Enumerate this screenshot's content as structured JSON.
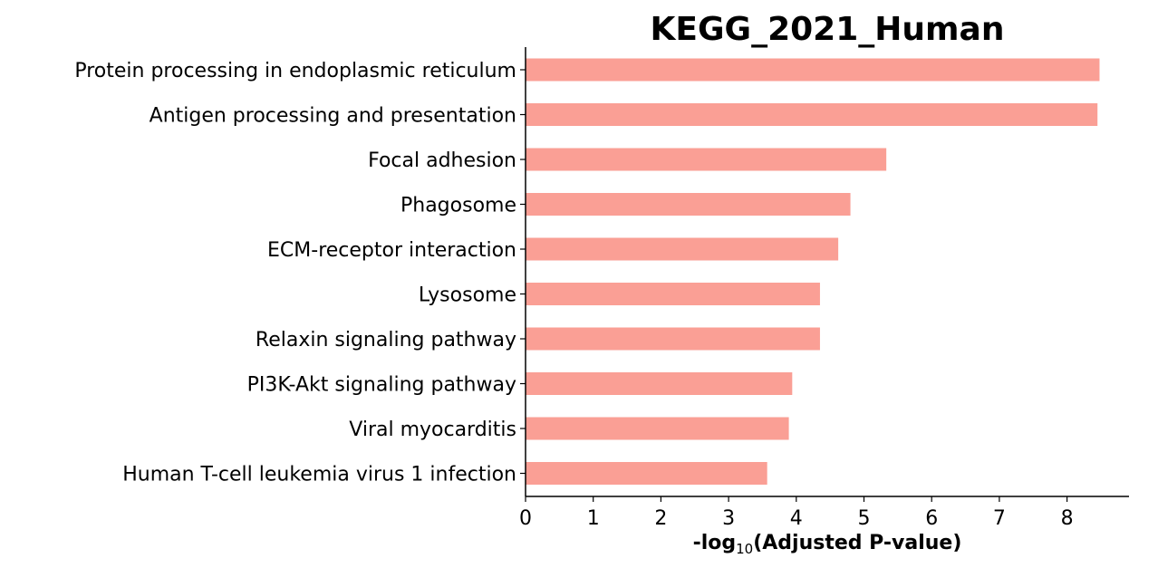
{
  "chart_data": {
    "type": "bar",
    "orientation": "horizontal",
    "title": "KEGG_2021_Human",
    "xlabel": {
      "prefix": "-log",
      "subscript": "10",
      "suffix": "(Adjusted P-value)"
    },
    "ylabel": "",
    "categories": [
      "Protein processing in endoplasmic reticulum",
      "Antigen processing and presentation",
      "Focal adhesion",
      "Phagosome",
      "ECM-receptor interaction",
      "Lysosome",
      "Relaxin signaling pathway",
      "PI3K-Akt signaling pathway",
      "Viral myocarditis",
      "Human T-cell leukemia virus 1 infection"
    ],
    "values": [
      8.48,
      8.45,
      5.33,
      4.8,
      4.62,
      4.35,
      4.35,
      3.94,
      3.89,
      3.57
    ],
    "xlim": [
      0,
      8.9
    ],
    "xticks": [
      "0",
      "1",
      "2",
      "3",
      "4",
      "5",
      "6",
      "7",
      "8"
    ],
    "bar_color": "#fa9f95",
    "grid": false,
    "legend": "none"
  }
}
